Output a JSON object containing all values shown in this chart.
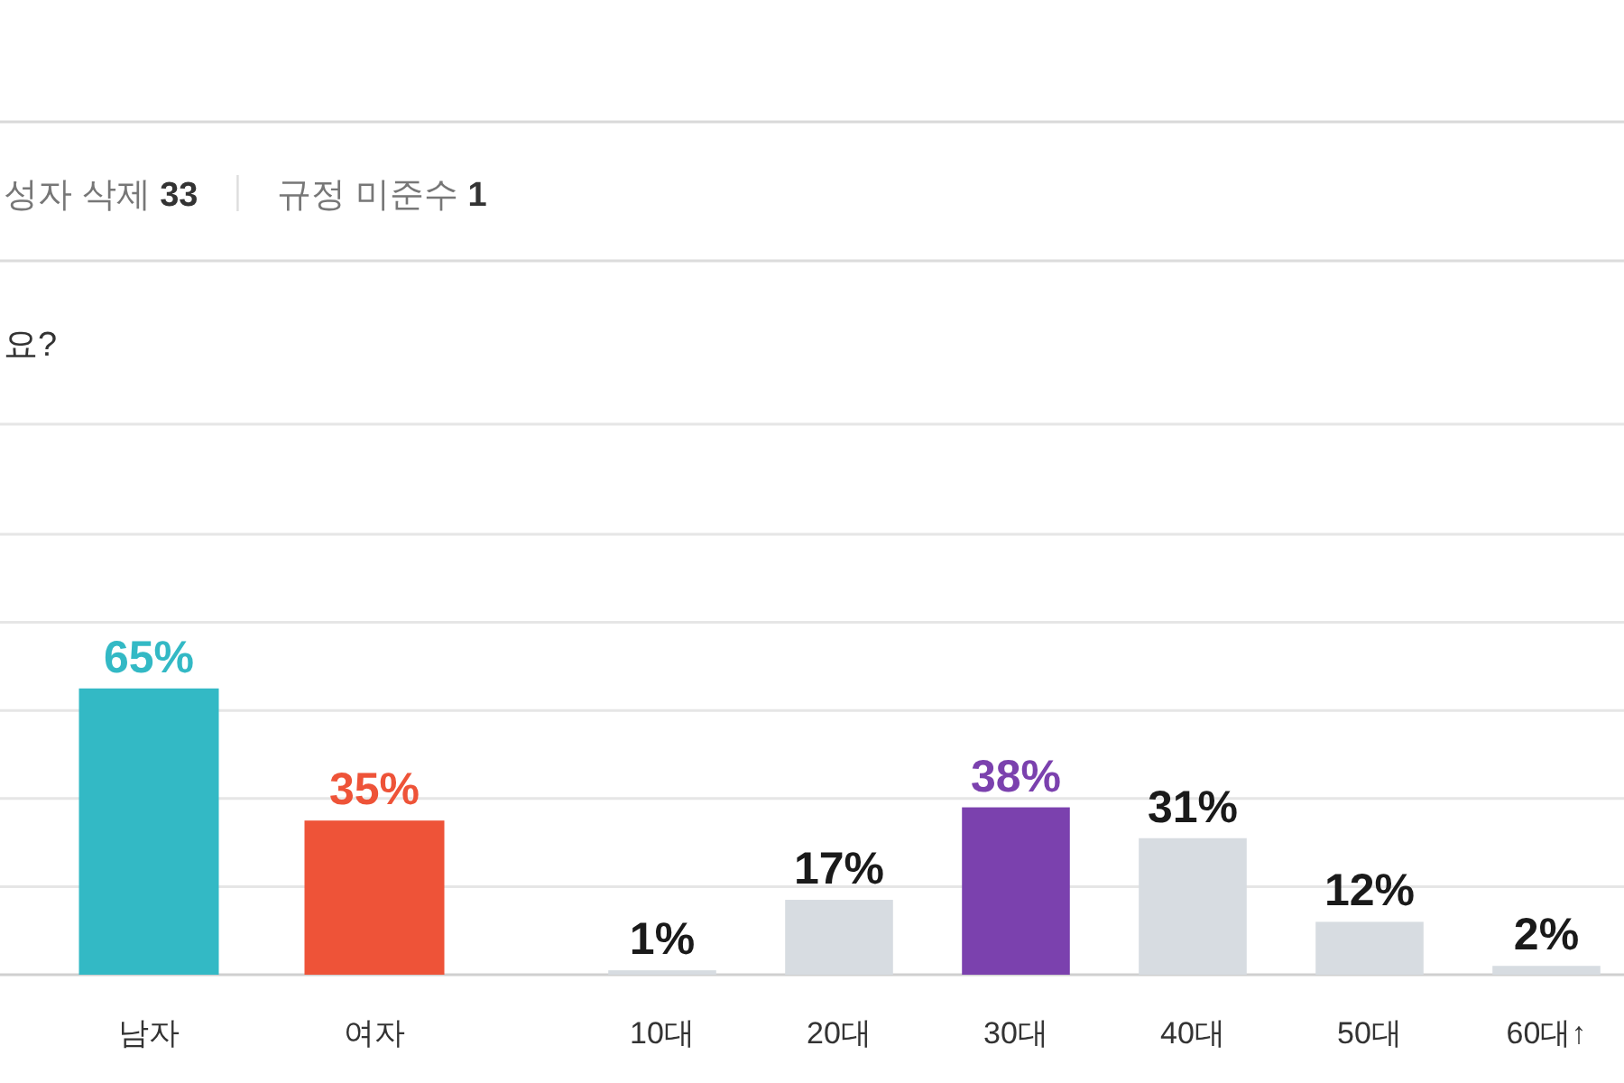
{
  "chart_data": [
    {
      "type": "bar",
      "title": "요?",
      "annotations": [
        "성자 삭제 33",
        "규정 미준수 1"
      ],
      "categories": [
        "남자",
        "여자"
      ],
      "values": [
        65,
        35
      ],
      "colors": [
        "#33b9c5",
        "#ee5338"
      ],
      "value_labels": [
        "65%",
        "35%"
      ],
      "ylim": [
        0,
        125
      ],
      "yticks": [
        {
          "value": 0,
          "label": null
        },
        {
          "value": 20,
          "label": null
        },
        {
          "value": 40,
          "label": null
        },
        {
          "value": 60,
          "label": null
        },
        {
          "value": 80,
          "label": null
        },
        {
          "value": 100,
          "label": null
        },
        {
          "value": 125,
          "label": null
        }
      ],
      "grid": "y",
      "tick_labels": "x"
    },
    {
      "type": "bar",
      "categories": [
        "10대",
        "20대",
        "30대",
        "40대",
        "50대",
        "60대↑"
      ],
      "values": [
        1,
        17,
        38,
        31,
        12,
        2
      ],
      "colors": [
        "#d7dce1",
        "#d7dce1",
        "#7b41ae",
        "#d7dce1",
        "#d7dce1",
        "#d7dce1"
      ],
      "value_labels": [
        "1%",
        "17%",
        "38%",
        "31%",
        "12%",
        "2%"
      ],
      "ylim": [
        0,
        125
      ],
      "yticks": [
        {
          "value": 0,
          "label": null
        },
        {
          "value": 20,
          "label": null
        },
        {
          "value": 40,
          "label": null
        },
        {
          "value": 60,
          "label": null
        },
        {
          "value": 80,
          "label": null
        },
        {
          "value": 100,
          "label": null
        },
        {
          "value": 125,
          "label": null
        }
      ],
      "grid": "y",
      "tick_labels": "x"
    }
  ]
}
